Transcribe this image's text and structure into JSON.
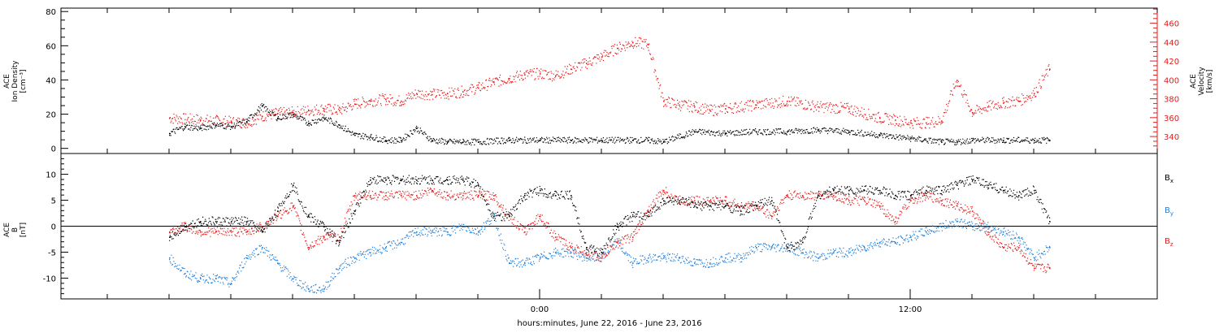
{
  "chart_data": [
    {
      "type": "scatter",
      "panel": "top",
      "ylabel_left": [
        "ACE",
        "Ion Density",
        "[cm⁻³]"
      ],
      "ylabel_right": [
        "ACE",
        "Velocity",
        "[km/s]"
      ],
      "left_axis": {
        "ylim": [
          -3,
          82
        ],
        "ticks": [
          0,
          20,
          40,
          60,
          80
        ]
      },
      "right_axis": {
        "ylim": [
          322,
          476
        ],
        "ticks": [
          340,
          360,
          380,
          400,
          420,
          440,
          460
        ]
      },
      "series": [
        {
          "axis": "left",
          "color": "#000000",
          "x": [
            -12,
            -11.5,
            -11,
            -10.5,
            -10,
            -9.5,
            -9,
            -8.5,
            -8,
            -7.5,
            -7,
            -6.5,
            -6,
            -5.5,
            -5,
            -4.5,
            -4,
            -3.5,
            -3,
            -2.5,
            -2,
            -1,
            0,
            1,
            2,
            3,
            3.5,
            4,
            5,
            6,
            7,
            8,
            9,
            10,
            11,
            12,
            13,
            13.5,
            14,
            15,
            16,
            16.5
          ],
          "y": [
            9,
            13,
            12,
            14,
            13,
            16,
            25,
            18,
            20,
            15,
            18,
            14,
            8,
            7,
            5,
            5,
            12,
            5,
            4,
            4,
            4,
            5,
            5,
            5,
            5,
            5,
            5,
            4,
            10,
            9,
            10,
            10,
            11,
            10,
            8,
            6,
            4,
            4,
            5,
            5,
            5,
            5
          ]
        },
        {
          "axis": "right",
          "color": "#e81a1a",
          "x": [
            -12,
            -11,
            -10,
            -9.5,
            -9,
            -8.5,
            -8,
            -7.5,
            -7,
            -6.5,
            -6,
            -5.5,
            -5,
            -4.5,
            -4,
            -3.5,
            -3,
            -2.5,
            -2,
            -1.5,
            -1,
            -0.5,
            0,
            0.5,
            1,
            1.5,
            2,
            2.5,
            3,
            3.5,
            4,
            4.5,
            5,
            5.5,
            6,
            7,
            8,
            9,
            10,
            11,
            11.5,
            12,
            12.5,
            13,
            13.5,
            14,
            14.5,
            15,
            15.5,
            16,
            16.5
          ],
          "y": [
            360,
            358,
            356,
            355,
            362,
            365,
            366,
            368,
            370,
            368,
            375,
            378,
            380,
            378,
            386,
            385,
            386,
            388,
            392,
            398,
            402,
            406,
            407,
            405,
            412,
            418,
            425,
            434,
            440,
            438,
            378,
            374,
            372,
            368,
            370,
            374,
            378,
            372,
            370,
            360,
            358,
            355,
            355,
            357,
            400,
            366,
            372,
            376,
            378,
            386,
            412
          ]
        }
      ]
    },
    {
      "type": "scatter",
      "panel": "bottom",
      "ylabel_left": [
        "ACE",
        "B",
        "[nT]"
      ],
      "ylim": [
        -14,
        14
      ],
      "ticks": [
        -10,
        -5,
        0,
        5,
        10
      ],
      "legend": [
        "Bx",
        "By",
        "Bz"
      ],
      "series": [
        {
          "name": "Bx",
          "color": "#000000",
          "x": [
            -12,
            -11.5,
            -11,
            -10.5,
            -10,
            -9.5,
            -9,
            -8.5,
            -8,
            -7.5,
            -7,
            -6.5,
            -6,
            -5.5,
            -5,
            -4.5,
            -4,
            -3.5,
            -3,
            -2.5,
            -2,
            -1.5,
            -1,
            -0.5,
            0,
            0.5,
            1,
            1.5,
            2,
            2.5,
            3,
            3.5,
            4,
            4.5,
            5,
            5.5,
            6,
            6.5,
            7,
            7.5,
            8,
            8.5,
            9,
            9.5,
            10,
            10.5,
            11,
            11.5,
            12,
            12.5,
            13,
            13.5,
            14,
            14.5,
            15,
            15.5,
            16,
            16.5
          ],
          "y": [
            -2,
            0,
            1,
            1,
            1,
            1,
            -1,
            3,
            8,
            2,
            0,
            -3,
            3,
            9,
            9,
            9,
            9,
            9,
            9,
            9,
            8,
            2,
            2,
            6,
            7,
            6,
            6,
            -4,
            -5,
            0,
            2,
            2,
            5,
            5,
            4,
            4,
            4,
            3,
            4,
            5,
            -4,
            -3,
            6,
            7,
            7,
            7,
            7,
            6,
            6,
            7,
            7,
            8,
            9,
            8,
            7,
            6,
            7,
            1
          ]
        },
        {
          "name": "By",
          "color": "#1e7fd9",
          "x": [
            -12,
            -11.5,
            -11,
            -10.5,
            -10,
            -9.5,
            -9,
            -8.5,
            -8,
            -7.5,
            -7,
            -6.5,
            -6,
            -5.5,
            -5,
            -4.5,
            -4,
            -3.5,
            -3,
            -2.5,
            -2,
            -1.5,
            -1,
            -0.5,
            0,
            0.5,
            1,
            1.5,
            2,
            2.5,
            3,
            3.5,
            4,
            4.5,
            5,
            5.5,
            6,
            6.5,
            7,
            7.5,
            8,
            8.5,
            9,
            9.5,
            10,
            10.5,
            11,
            11.5,
            12,
            12.5,
            13,
            13.5,
            14,
            14.5,
            15,
            15.5,
            16,
            16.5
          ],
          "y": [
            -6,
            -9,
            -10,
            -10,
            -11,
            -6,
            -4,
            -7,
            -10,
            -12,
            -12,
            -8,
            -6,
            -5,
            -4,
            -3,
            -1,
            -1,
            -1,
            0,
            -1,
            2,
            -7,
            -7,
            -6,
            -5,
            -5,
            -6,
            -6,
            -3,
            -7,
            -6,
            -6,
            -6,
            -7,
            -7,
            -6,
            -6,
            -4,
            -4,
            -4,
            -5,
            -6,
            -5,
            -5,
            -4,
            -3,
            -3,
            -2,
            -1,
            0,
            1,
            0,
            0,
            -1,
            -2,
            -6,
            -4
          ]
        },
        {
          "name": "Bz",
          "color": "#e81a1a",
          "x": [
            -12,
            -11.5,
            -11,
            -10.5,
            -10,
            -9.5,
            -9,
            -8.5,
            -8,
            -7.5,
            -7,
            -6.5,
            -6,
            -5.5,
            -5,
            -4.5,
            -4,
            -3.5,
            -3,
            -2.5,
            -2,
            -1.5,
            -1,
            -0.5,
            0,
            0.5,
            1,
            1.5,
            2,
            2.5,
            3,
            3.5,
            4,
            4.5,
            5,
            5.5,
            6,
            6.5,
            7,
            7.5,
            8,
            8.5,
            9,
            9.5,
            10,
            10.5,
            11,
            11.5,
            12,
            12.5,
            13,
            13.5,
            14,
            14.5,
            15,
            15.5,
            16,
            16.5
          ],
          "y": [
            -1,
            0,
            -1,
            -1,
            -1,
            -1,
            0,
            2,
            4,
            -4,
            -2,
            -2,
            6,
            6,
            6,
            6,
            6,
            7,
            6,
            6,
            6,
            6,
            2,
            -1,
            2,
            -2,
            -4,
            -5,
            -6,
            -3,
            -2,
            3,
            7,
            5,
            5,
            5,
            5,
            4,
            4,
            2,
            6,
            6,
            6,
            6,
            5,
            5,
            4,
            1,
            5,
            6,
            5,
            4,
            3,
            -1,
            -4,
            -4,
            -8,
            -8
          ]
        }
      ]
    }
  ],
  "x_axis": {
    "xlim": [
      -15.5,
      20
    ],
    "ticks": [
      {
        "value": 0,
        "label": "0:00"
      },
      {
        "value": 12,
        "label": "12:00"
      }
    ],
    "minor_step": 2,
    "label": "hours:minutes, June 22, 2016 - June 23, 2016"
  },
  "colors": {
    "black": "#000000",
    "blue": "#1e7fd9",
    "red": "#e81a1a"
  }
}
